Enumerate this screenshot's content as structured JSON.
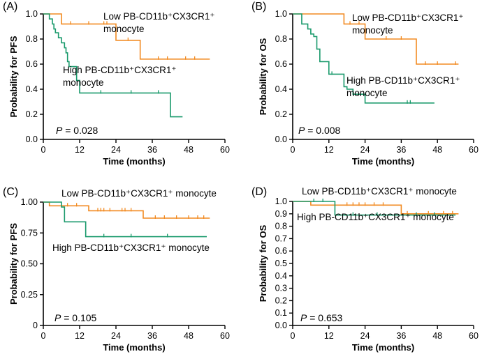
{
  "colors": {
    "low": "#f28a21",
    "high": "#1a9a6c",
    "axis": "#000000"
  },
  "chart_data": [
    {
      "type": "line",
      "panel_label": "(A)",
      "xlabel": "Time (months)",
      "ylabel": "Probability for PFS",
      "xlim": [
        0,
        60
      ],
      "ylim": [
        0,
        1.0
      ],
      "xticks": [
        0,
        12,
        24,
        36,
        48,
        60
      ],
      "yticks": [
        0.0,
        0.2,
        0.4,
        0.6,
        0.8,
        1.0
      ],
      "ytick_labels": [
        "0.0",
        "0.2",
        "0.4",
        "0.6",
        "0.8",
        "1.0"
      ],
      "p_value": "= 0.028",
      "series": [
        {
          "name": "Low PB-CD11b⁺CX3CR1⁺ monocyte",
          "key": "low",
          "legend_lines": [
            "Low PB-CD11b⁺CX3CR1⁺",
            "monocyte"
          ],
          "steps": [
            [
              0,
              1.0
            ],
            [
              6,
              0.92
            ],
            [
              24,
              0.79
            ],
            [
              32,
              0.64
            ],
            [
              55,
              0.64
            ]
          ],
          "censored": [
            [
              9,
              0.92
            ],
            [
              15,
              0.92
            ],
            [
              20,
              0.92
            ],
            [
              21,
              0.92
            ],
            [
              28,
              0.79
            ],
            [
              38,
              0.64
            ],
            [
              41,
              0.64
            ],
            [
              47,
              0.64
            ],
            [
              50,
              0.64
            ]
          ]
        },
        {
          "name": "High PB-CD11b⁺CX3CR1⁺ monocyte",
          "key": "high",
          "legend_lines": [
            "High PB-CD11b⁺CX3CR1⁺",
            "monocyte"
          ],
          "steps": [
            [
              0,
              1.0
            ],
            [
              2,
              0.96
            ],
            [
              3,
              0.92
            ],
            [
              3.5,
              0.88
            ],
            [
              4,
              0.85
            ],
            [
              5,
              0.81
            ],
            [
              6,
              0.77
            ],
            [
              7,
              0.73
            ],
            [
              7.5,
              0.69
            ],
            [
              8,
              0.62
            ],
            [
              8.5,
              0.58
            ],
            [
              11,
              0.47
            ],
            [
              12,
              0.37
            ],
            [
              42,
              0.18
            ],
            [
              46,
              0.18
            ]
          ],
          "censored": [
            [
              19,
              0.37
            ],
            [
              29,
              0.37
            ],
            [
              38,
              0.37
            ]
          ]
        }
      ]
    },
    {
      "type": "line",
      "panel_label": "(B)",
      "xlabel": "Time (months)",
      "ylabel": "Probability for OS",
      "xlim": [
        0,
        60
      ],
      "ylim": [
        0,
        1.0
      ],
      "xticks": [
        0,
        12,
        24,
        36,
        48,
        60
      ],
      "yticks": [
        0.0,
        0.2,
        0.4,
        0.6,
        0.8,
        1.0
      ],
      "ytick_labels": [
        "0.0",
        "0.2",
        "0.4",
        "0.6",
        "0.8",
        "1.0"
      ],
      "p_value": "= 0.008",
      "series": [
        {
          "name": "Low PB-CD11b⁺CX3CR1⁺ monocyte",
          "key": "low",
          "legend_lines": [
            "Low PB-CD11b⁺CX3CR1⁺",
            "monocyte"
          ],
          "steps": [
            [
              0,
              1.0
            ],
            [
              17,
              0.92
            ],
            [
              24,
              0.8
            ],
            [
              41,
              0.6
            ],
            [
              55,
              0.6
            ]
          ],
          "censored": [
            [
              19,
              0.92
            ],
            [
              22,
              0.92
            ],
            [
              31,
              0.8
            ],
            [
              36,
              0.8
            ],
            [
              44,
              0.6
            ],
            [
              48,
              0.6
            ],
            [
              54,
              0.6
            ]
          ]
        },
        {
          "name": "High PB-CD11b⁺CX3CR1⁺ monocyte",
          "key": "high",
          "legend_lines": [
            "High PB-CD11b⁺CX3CR1⁺",
            "monocyte"
          ],
          "steps": [
            [
              0,
              1.0
            ],
            [
              3,
              0.92
            ],
            [
              5,
              0.88
            ],
            [
              6,
              0.84
            ],
            [
              7,
              0.82
            ],
            [
              8,
              0.72
            ],
            [
              9,
              0.62
            ],
            [
              12,
              0.52
            ],
            [
              17,
              0.42
            ],
            [
              18,
              0.4
            ],
            [
              20,
              0.36
            ],
            [
              24,
              0.29
            ],
            [
              47,
              0.29
            ]
          ],
          "censored": [
            [
              13,
              0.52
            ],
            [
              38,
              0.29
            ],
            [
              39,
              0.29
            ]
          ]
        }
      ]
    },
    {
      "type": "line",
      "panel_label": "(C)",
      "xlabel": "Time (months)",
      "ylabel": "Probability for  PFS",
      "xlim": [
        0,
        60
      ],
      "ylim": [
        0,
        1.0
      ],
      "xticks": [
        0,
        12,
        24,
        36,
        48,
        60
      ],
      "yticks": [
        0.0,
        0.25,
        0.5,
        0.75,
        1.0
      ],
      "ytick_labels": [
        "0",
        "0.25",
        "0.50",
        "0.75",
        "1.00"
      ],
      "p_value": "= 0.105",
      "series": [
        {
          "name": "Low PB-CD11b⁺CX3CR1⁺ monocyte",
          "key": "low",
          "legend_lines": [
            "Low PB-CD11b⁺CX3CR1⁺ monocyte"
          ],
          "steps": [
            [
              0,
              1.0
            ],
            [
              2,
              0.97
            ],
            [
              15,
              0.93
            ],
            [
              33,
              0.87
            ],
            [
              55,
              0.87
            ]
          ],
          "censored": [
            [
              8,
              0.97
            ],
            [
              11,
              0.97
            ],
            [
              18,
              0.93
            ],
            [
              19,
              0.93
            ],
            [
              20,
              0.93
            ],
            [
              22,
              0.93
            ],
            [
              26,
              0.93
            ],
            [
              27,
              0.93
            ],
            [
              29,
              0.93
            ],
            [
              37,
              0.87
            ],
            [
              40,
              0.87
            ],
            [
              44,
              0.87
            ],
            [
              48,
              0.87
            ],
            [
              51,
              0.87
            ],
            [
              53,
              0.87
            ]
          ]
        },
        {
          "name": "High PB-CD11b⁺CX3CR1⁺ monocyte",
          "key": "high",
          "legend_lines": [
            "High PB-CD11b⁺CX3CR1⁺ monocyte"
          ],
          "steps": [
            [
              0,
              1.0
            ],
            [
              6,
              0.96
            ],
            [
              7,
              0.84
            ],
            [
              14,
              0.72
            ],
            [
              54,
              0.72
            ]
          ],
          "censored": [
            [
              20,
              0.72
            ],
            [
              29,
              0.72
            ],
            [
              41,
              0.72
            ]
          ]
        }
      ]
    },
    {
      "type": "line",
      "panel_label": "(D)",
      "xlabel": "Time (months)",
      "ylabel": "Probability for OS",
      "xlim": [
        0,
        60
      ],
      "ylim": [
        0,
        1.0
      ],
      "xticks": [
        0,
        12,
        24,
        36,
        48,
        60
      ],
      "yticks": [
        0.0,
        0.1,
        0.2,
        0.3,
        0.4,
        0.5,
        0.6,
        0.7,
        0.8,
        0.9,
        1.0
      ],
      "ytick_labels": [
        "0.0",
        "0.1",
        "0.2",
        "0.3",
        "0.4",
        "0.5",
        "0.6",
        "0.7",
        "0.8",
        "0.9",
        "1.0"
      ],
      "p_value": "= 0.653",
      "series": [
        {
          "name": "Low PB-CD11b⁺CX3CR1⁺ monocyte",
          "key": "low",
          "legend_lines": [
            "Low PB-CD11b⁺CX3CR1⁺ monocyte"
          ],
          "steps": [
            [
              0,
              1.0
            ],
            [
              6,
              0.97
            ],
            [
              36,
              0.9
            ],
            [
              55,
              0.9
            ]
          ],
          "censored": [
            [
              18,
              0.97
            ],
            [
              20,
              0.97
            ],
            [
              22,
              0.97
            ],
            [
              24,
              0.97
            ],
            [
              27,
              0.97
            ],
            [
              30,
              0.97
            ],
            [
              38,
              0.9
            ],
            [
              45,
              0.9
            ],
            [
              50,
              0.9
            ],
            [
              53,
              0.9
            ]
          ]
        },
        {
          "name": "High PB-CD11b⁺CX3CR1⁺ monocyte",
          "key": "high",
          "legend_lines": [
            "High PB-CD11b⁺CX3CR1⁺ monocyte"
          ],
          "steps": [
            [
              0,
              1.0
            ],
            [
              14,
              0.89
            ],
            [
              54,
              0.89
            ]
          ],
          "censored": [
            [
              7,
              1.0
            ],
            [
              10,
              1.0
            ],
            [
              20,
              0.89
            ],
            [
              28,
              0.89
            ],
            [
              41,
              0.89
            ],
            [
              47,
              0.89
            ]
          ]
        }
      ]
    }
  ]
}
